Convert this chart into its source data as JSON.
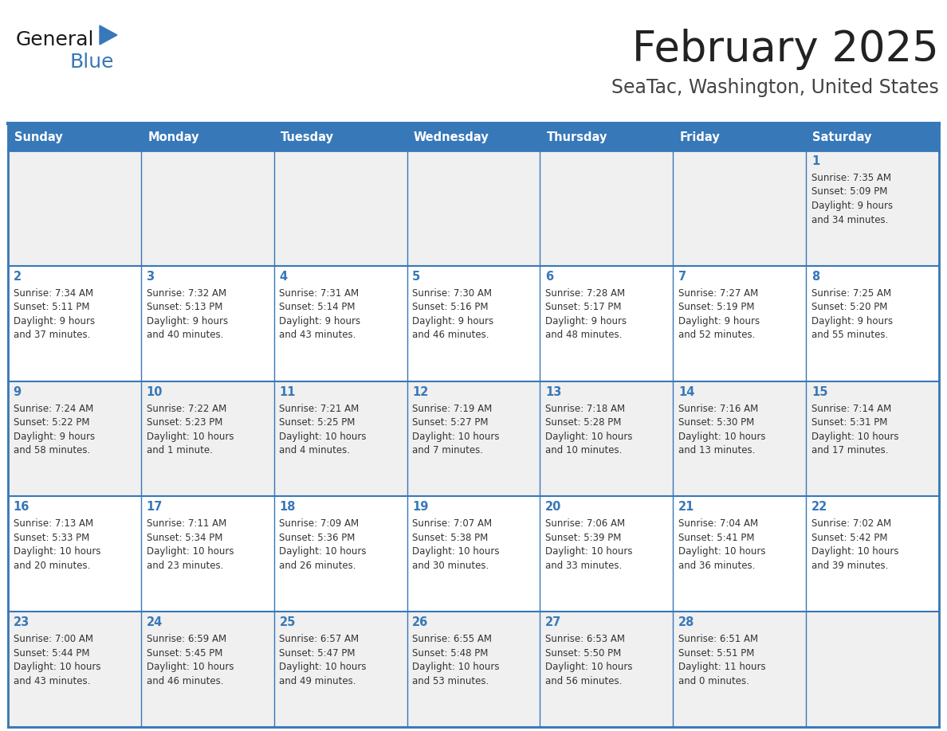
{
  "title": "February 2025",
  "subtitle": "SeaTac, Washington, United States",
  "header_color": "#3778b8",
  "header_text_color": "#ffffff",
  "cell_bg_even": "#f0f0f0",
  "cell_bg_odd": "#ffffff",
  "day_number_color": "#3778b8",
  "text_color": "#333333",
  "border_color": "#3778b8",
  "days_of_week": [
    "Sunday",
    "Monday",
    "Tuesday",
    "Wednesday",
    "Thursday",
    "Friday",
    "Saturday"
  ],
  "weeks": [
    [
      {
        "day": null,
        "sunrise": null,
        "sunset": null,
        "daylight_line1": null,
        "daylight_line2": null
      },
      {
        "day": null,
        "sunrise": null,
        "sunset": null,
        "daylight_line1": null,
        "daylight_line2": null
      },
      {
        "day": null,
        "sunrise": null,
        "sunset": null,
        "daylight_line1": null,
        "daylight_line2": null
      },
      {
        "day": null,
        "sunrise": null,
        "sunset": null,
        "daylight_line1": null,
        "daylight_line2": null
      },
      {
        "day": null,
        "sunrise": null,
        "sunset": null,
        "daylight_line1": null,
        "daylight_line2": null
      },
      {
        "day": null,
        "sunrise": null,
        "sunset": null,
        "daylight_line1": null,
        "daylight_line2": null
      },
      {
        "day": 1,
        "sunrise": "7:35 AM",
        "sunset": "5:09 PM",
        "daylight_line1": "Daylight: 9 hours",
        "daylight_line2": "and 34 minutes."
      }
    ],
    [
      {
        "day": 2,
        "sunrise": "7:34 AM",
        "sunset": "5:11 PM",
        "daylight_line1": "Daylight: 9 hours",
        "daylight_line2": "and 37 minutes."
      },
      {
        "day": 3,
        "sunrise": "7:32 AM",
        "sunset": "5:13 PM",
        "daylight_line1": "Daylight: 9 hours",
        "daylight_line2": "and 40 minutes."
      },
      {
        "day": 4,
        "sunrise": "7:31 AM",
        "sunset": "5:14 PM",
        "daylight_line1": "Daylight: 9 hours",
        "daylight_line2": "and 43 minutes."
      },
      {
        "day": 5,
        "sunrise": "7:30 AM",
        "sunset": "5:16 PM",
        "daylight_line1": "Daylight: 9 hours",
        "daylight_line2": "and 46 minutes."
      },
      {
        "day": 6,
        "sunrise": "7:28 AM",
        "sunset": "5:17 PM",
        "daylight_line1": "Daylight: 9 hours",
        "daylight_line2": "and 48 minutes."
      },
      {
        "day": 7,
        "sunrise": "7:27 AM",
        "sunset": "5:19 PM",
        "daylight_line1": "Daylight: 9 hours",
        "daylight_line2": "and 52 minutes."
      },
      {
        "day": 8,
        "sunrise": "7:25 AM",
        "sunset": "5:20 PM",
        "daylight_line1": "Daylight: 9 hours",
        "daylight_line2": "and 55 minutes."
      }
    ],
    [
      {
        "day": 9,
        "sunrise": "7:24 AM",
        "sunset": "5:22 PM",
        "daylight_line1": "Daylight: 9 hours",
        "daylight_line2": "and 58 minutes."
      },
      {
        "day": 10,
        "sunrise": "7:22 AM",
        "sunset": "5:23 PM",
        "daylight_line1": "Daylight: 10 hours",
        "daylight_line2": "and 1 minute."
      },
      {
        "day": 11,
        "sunrise": "7:21 AM",
        "sunset": "5:25 PM",
        "daylight_line1": "Daylight: 10 hours",
        "daylight_line2": "and 4 minutes."
      },
      {
        "day": 12,
        "sunrise": "7:19 AM",
        "sunset": "5:27 PM",
        "daylight_line1": "Daylight: 10 hours",
        "daylight_line2": "and 7 minutes."
      },
      {
        "day": 13,
        "sunrise": "7:18 AM",
        "sunset": "5:28 PM",
        "daylight_line1": "Daylight: 10 hours",
        "daylight_line2": "and 10 minutes."
      },
      {
        "day": 14,
        "sunrise": "7:16 AM",
        "sunset": "5:30 PM",
        "daylight_line1": "Daylight: 10 hours",
        "daylight_line2": "and 13 minutes."
      },
      {
        "day": 15,
        "sunrise": "7:14 AM",
        "sunset": "5:31 PM",
        "daylight_line1": "Daylight: 10 hours",
        "daylight_line2": "and 17 minutes."
      }
    ],
    [
      {
        "day": 16,
        "sunrise": "7:13 AM",
        "sunset": "5:33 PM",
        "daylight_line1": "Daylight: 10 hours",
        "daylight_line2": "and 20 minutes."
      },
      {
        "day": 17,
        "sunrise": "7:11 AM",
        "sunset": "5:34 PM",
        "daylight_line1": "Daylight: 10 hours",
        "daylight_line2": "and 23 minutes."
      },
      {
        "day": 18,
        "sunrise": "7:09 AM",
        "sunset": "5:36 PM",
        "daylight_line1": "Daylight: 10 hours",
        "daylight_line2": "and 26 minutes."
      },
      {
        "day": 19,
        "sunrise": "7:07 AM",
        "sunset": "5:38 PM",
        "daylight_line1": "Daylight: 10 hours",
        "daylight_line2": "and 30 minutes."
      },
      {
        "day": 20,
        "sunrise": "7:06 AM",
        "sunset": "5:39 PM",
        "daylight_line1": "Daylight: 10 hours",
        "daylight_line2": "and 33 minutes."
      },
      {
        "day": 21,
        "sunrise": "7:04 AM",
        "sunset": "5:41 PM",
        "daylight_line1": "Daylight: 10 hours",
        "daylight_line2": "and 36 minutes."
      },
      {
        "day": 22,
        "sunrise": "7:02 AM",
        "sunset": "5:42 PM",
        "daylight_line1": "Daylight: 10 hours",
        "daylight_line2": "and 39 minutes."
      }
    ],
    [
      {
        "day": 23,
        "sunrise": "7:00 AM",
        "sunset": "5:44 PM",
        "daylight_line1": "Daylight: 10 hours",
        "daylight_line2": "and 43 minutes."
      },
      {
        "day": 24,
        "sunrise": "6:59 AM",
        "sunset": "5:45 PM",
        "daylight_line1": "Daylight: 10 hours",
        "daylight_line2": "and 46 minutes."
      },
      {
        "day": 25,
        "sunrise": "6:57 AM",
        "sunset": "5:47 PM",
        "daylight_line1": "Daylight: 10 hours",
        "daylight_line2": "and 49 minutes."
      },
      {
        "day": 26,
        "sunrise": "6:55 AM",
        "sunset": "5:48 PM",
        "daylight_line1": "Daylight: 10 hours",
        "daylight_line2": "and 53 minutes."
      },
      {
        "day": 27,
        "sunrise": "6:53 AM",
        "sunset": "5:50 PM",
        "daylight_line1": "Daylight: 10 hours",
        "daylight_line2": "and 56 minutes."
      },
      {
        "day": 28,
        "sunrise": "6:51 AM",
        "sunset": "5:51 PM",
        "daylight_line1": "Daylight: 11 hours",
        "daylight_line2": "and 0 minutes."
      },
      {
        "day": null,
        "sunrise": null,
        "sunset": null,
        "daylight_line1": null,
        "daylight_line2": null
      }
    ]
  ]
}
